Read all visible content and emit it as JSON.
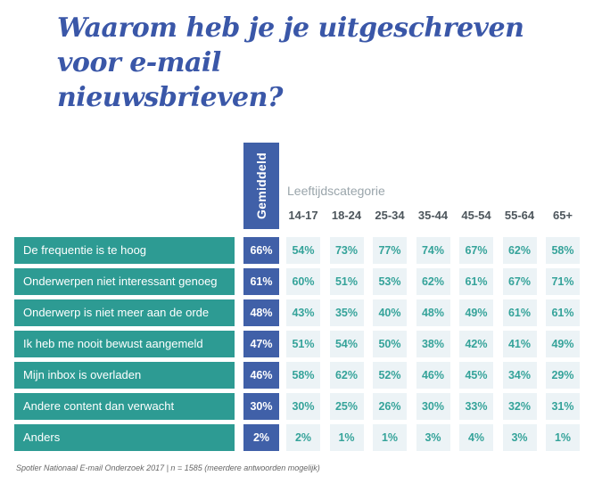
{
  "title_lines": [
    "Waarom heb je je uitgeschreven voor e-mail",
    "nieuwsbrieven?"
  ],
  "header": {
    "average_label": "Gemiddeld",
    "group_label": "Leeftijdscategorie",
    "age_columns": [
      "14-17",
      "18-24",
      "25-34",
      "35-44",
      "45-54",
      "55-64",
      "65+"
    ]
  },
  "rows": [
    {
      "label": "De frequentie is te hoog",
      "average": "66%",
      "values": [
        "54%",
        "73%",
        "77%",
        "74%",
        "67%",
        "62%",
        "58%"
      ]
    },
    {
      "label": "Onderwerpen niet interessant genoeg",
      "average": "61%",
      "values": [
        "60%",
        "51%",
        "53%",
        "62%",
        "61%",
        "67%",
        "71%"
      ]
    },
    {
      "label": "Onderwerp is niet meer aan de orde",
      "average": "48%",
      "values": [
        "43%",
        "35%",
        "40%",
        "48%",
        "49%",
        "61%",
        "61%"
      ]
    },
    {
      "label": "Ik heb me nooit bewust aangemeld",
      "average": "47%",
      "values": [
        "51%",
        "54%",
        "50%",
        "38%",
        "42%",
        "41%",
        "49%"
      ]
    },
    {
      "label": "Mijn inbox is overladen",
      "average": "46%",
      "values": [
        "58%",
        "62%",
        "52%",
        "46%",
        "45%",
        "34%",
        "29%"
      ]
    },
    {
      "label": "Andere content dan verwacht",
      "average": "30%",
      "values": [
        "30%",
        "25%",
        "26%",
        "30%",
        "33%",
        "32%",
        "31%"
      ]
    },
    {
      "label": "Anders",
      "average": "2%",
      "values": [
        "2%",
        "1%",
        "1%",
        "3%",
        "4%",
        "3%",
        "1%"
      ]
    }
  ],
  "footer": "Spotler Nationaal E-mail Onderzoek 2017 | n = 1585 (meerdere antwoorden mogelijk)",
  "colors": {
    "brand_blue": "#4060A8",
    "title_blue": "#3A57A8",
    "teal": "#2D9B93",
    "cell_background": "#ECF3F6",
    "cell_text_teal": "#35A39A",
    "age_header_text": "#4D565C",
    "group_label_text": "#9AA5AB",
    "footer_text": "#666666"
  },
  "chart_data": {
    "type": "table",
    "title": "Waarom heb je je uitgeschreven voor e-mail nieuwsbrieven?",
    "columns": [
      "Gemiddeld",
      "14-17",
      "18-24",
      "25-34",
      "35-44",
      "45-54",
      "55-64",
      "65+"
    ],
    "unit": "%",
    "series": [
      {
        "name": "De frequentie is te hoog",
        "gemiddeld": 66,
        "values": [
          54,
          73,
          77,
          74,
          67,
          62,
          58
        ]
      },
      {
        "name": "Onderwerpen niet interessant genoeg",
        "gemiddeld": 61,
        "values": [
          60,
          51,
          53,
          62,
          61,
          67,
          71
        ]
      },
      {
        "name": "Onderwerp is niet meer aan de orde",
        "gemiddeld": 48,
        "values": [
          43,
          35,
          40,
          48,
          49,
          61,
          61
        ]
      },
      {
        "name": "Ik heb me nooit bewust aangemeld",
        "gemiddeld": 47,
        "values": [
          51,
          54,
          50,
          38,
          42,
          41,
          49
        ]
      },
      {
        "name": "Mijn inbox is overladen",
        "gemiddeld": 46,
        "values": [
          58,
          62,
          52,
          46,
          45,
          34,
          29
        ]
      },
      {
        "name": "Andere content dan verwacht",
        "gemiddeld": 30,
        "values": [
          30,
          25,
          26,
          30,
          33,
          32,
          31
        ]
      },
      {
        "name": "Anders",
        "gemiddeld": 2,
        "values": [
          2,
          1,
          1,
          3,
          4,
          3,
          1
        ]
      }
    ],
    "source": "Spotler Nationaal E-mail Onderzoek 2017 | n = 1585 (meerdere antwoorden mogelijk)"
  }
}
